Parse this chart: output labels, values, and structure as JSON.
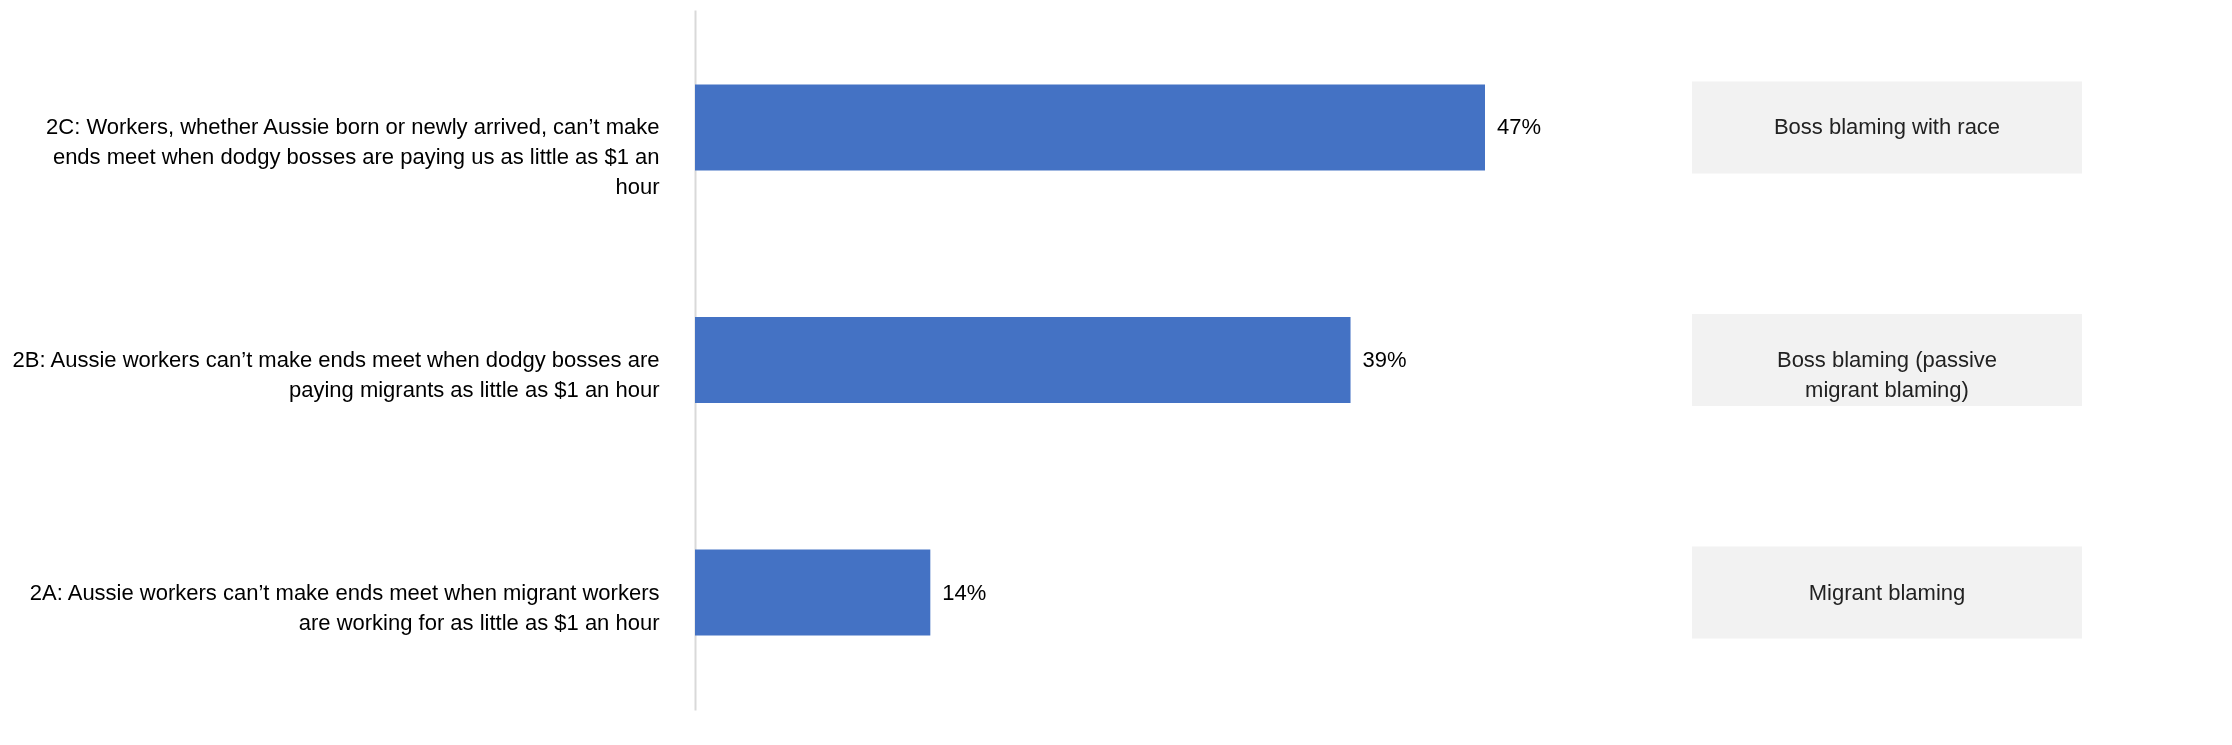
{
  "chart_data": {
    "type": "bar",
    "orientation": "horizontal",
    "categories": [
      "2C: Workers, whether Aussie born or newly arrived, can’t make ends meet when dodgy bosses are paying us as little as $1 an hour",
      "2B: Aussie workers can’t make ends meet when dodgy bosses are paying migrants as little as $1 an hour",
      "2A: Aussie workers can’t make ends meet when migrant workers are working for as little as $1 an hour"
    ],
    "values": [
      47,
      39,
      14
    ],
    "value_labels": [
      "47%",
      "39%",
      "14%"
    ],
    "color": "#4472c4",
    "annotations": [
      "Boss blaming with race",
      "Boss blaming (passive migrant blaming)",
      "Migrant blaming"
    ]
  }
}
